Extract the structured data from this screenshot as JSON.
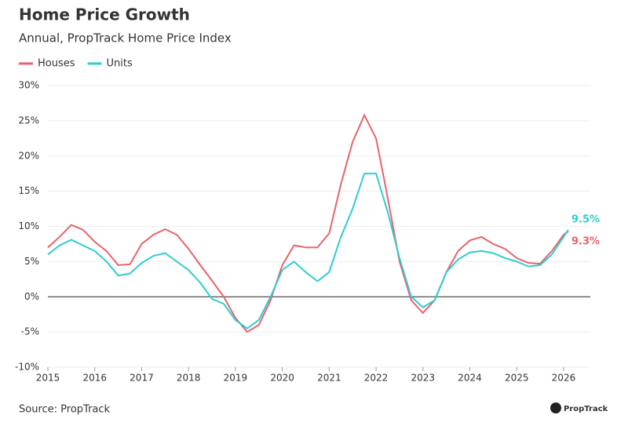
{
  "chart_data": {
    "type": "line",
    "title": "Home Price Growth",
    "subtitle": "Annual, PropTrack Home Price Index",
    "source": "Source: PropTrack",
    "logo_text": "PropTrack",
    "x": [
      2015.0,
      2015.25,
      2015.5,
      2015.75,
      2016.0,
      2016.25,
      2016.5,
      2016.75,
      2017.0,
      2017.25,
      2017.5,
      2017.75,
      2018.0,
      2018.25,
      2018.5,
      2018.75,
      2019.0,
      2019.25,
      2019.5,
      2019.75,
      2020.0,
      2020.25,
      2020.5,
      2020.75,
      2021.0,
      2021.25,
      2021.5,
      2021.75,
      2022.0,
      2022.25,
      2022.5,
      2022.75,
      2023.0,
      2023.25,
      2023.5,
      2023.75,
      2024.0,
      2024.25,
      2024.5,
      2024.75,
      2025.0,
      2025.25,
      2025.5,
      2025.75,
      2026.0,
      2026.1
    ],
    "series": [
      {
        "name": "Houses",
        "color": "#e8636b",
        "end_label": "9.3%",
        "values": [
          7.0,
          8.5,
          10.2,
          9.5,
          7.8,
          6.5,
          4.5,
          4.6,
          7.5,
          8.8,
          9.6,
          8.8,
          6.8,
          4.5,
          2.3,
          0.0,
          -3.0,
          -5.0,
          -4.0,
          -0.5,
          4.5,
          7.3,
          7.0,
          7.0,
          9.0,
          16.0,
          22.0,
          25.8,
          22.5,
          14.0,
          5.0,
          -0.5,
          -2.3,
          -0.5,
          3.5,
          6.5,
          8.0,
          8.5,
          7.5,
          6.8,
          5.5,
          4.8,
          4.7,
          6.5,
          8.8,
          9.3
        ]
      },
      {
        "name": "Units",
        "color": "#2fcdd0",
        "end_label": "9.5%",
        "values": [
          6.0,
          7.3,
          8.1,
          7.3,
          6.5,
          5.0,
          3.0,
          3.3,
          4.8,
          5.8,
          6.2,
          5.0,
          3.8,
          2.0,
          -0.3,
          -1.0,
          -3.3,
          -4.5,
          -3.3,
          0.0,
          3.8,
          5.0,
          3.5,
          2.2,
          3.5,
          8.5,
          12.5,
          17.5,
          17.5,
          12.0,
          5.5,
          0.0,
          -1.5,
          -0.5,
          3.5,
          5.3,
          6.3,
          6.5,
          6.2,
          5.5,
          5.0,
          4.3,
          4.5,
          6.0,
          8.5,
          9.5
        ]
      }
    ],
    "xlim": [
      2015,
      2026.57
    ],
    "xticks": [
      2015,
      2016,
      2017,
      2018,
      2019,
      2020,
      2021,
      2022,
      2023,
      2024,
      2025,
      2026
    ],
    "ylim": [
      -10,
      30
    ],
    "yticks": [
      {
        "value": -10,
        "label": "-10%"
      },
      {
        "value": -5,
        "label": "-5%"
      },
      {
        "value": 0,
        "label": "0%"
      },
      {
        "value": 5,
        "label": "5%"
      },
      {
        "value": 10,
        "label": "10%"
      },
      {
        "value": 15,
        "label": "15%"
      },
      {
        "value": 20,
        "label": "20%"
      },
      {
        "value": 25,
        "label": "25%"
      },
      {
        "value": 30,
        "label": "30%"
      }
    ],
    "grid": true
  }
}
